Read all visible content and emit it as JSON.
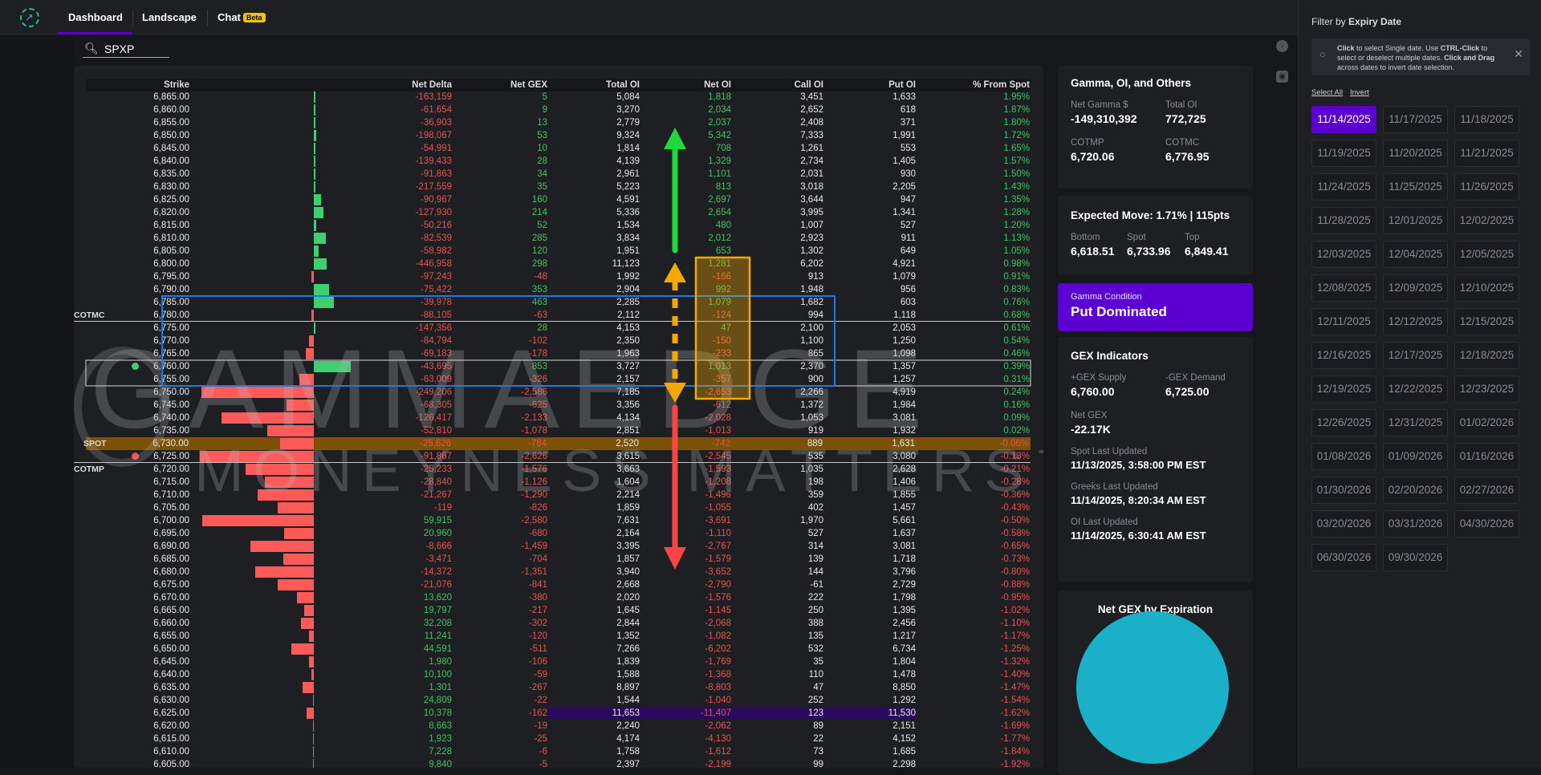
{
  "nav": {
    "tabs": [
      {
        "label": "Dashboard",
        "active": true
      },
      {
        "label": "Landscape"
      },
      {
        "label": "Chat",
        "badge": "Beta"
      }
    ],
    "logo_icon": "trend-up-circle-icon"
  },
  "search": {
    "value": "SPXP",
    "icon": "search-icon"
  },
  "table": {
    "columns": [
      "Strike",
      "Net Delta",
      "Net GEX",
      "Total OI",
      "Net OI",
      "Call OI",
      "Put OI",
      "% From Spot"
    ],
    "markers": {
      "cotmc": "COTMC",
      "spot": "SPOT",
      "cotmp": "COTMP"
    },
    "colors": {
      "positive": "#3fc465",
      "negative": "#ee5050",
      "spot_row": "#7a5200",
      "max_oi_row": "#2a0a5c",
      "range_box": "#1f7ae0",
      "net_oi_box": "#f5a800"
    },
    "rows": [
      [
        "6,865.00",
        "-163,159",
        "5",
        "5,084",
        "1,818",
        "3,451",
        "1,633",
        "1.95%"
      ],
      [
        "6,860.00",
        "-61,654",
        "9",
        "3,270",
        "2,034",
        "2,652",
        "618",
        "1.87%"
      ],
      [
        "6,855.00",
        "-36,903",
        "13",
        "2,779",
        "2,037",
        "2,408",
        "371",
        "1.80%"
      ],
      [
        "6,850.00",
        "-198,067",
        "53",
        "9,324",
        "5,342",
        "7,333",
        "1,991",
        "1.72%"
      ],
      [
        "6,845.00",
        "-54,991",
        "10",
        "1,814",
        "708",
        "1,261",
        "553",
        "1.65%"
      ],
      [
        "6,840.00",
        "-139,433",
        "28",
        "4,139",
        "1,329",
        "2,734",
        "1,405",
        "1.57%"
      ],
      [
        "6,835.00",
        "-91,863",
        "34",
        "2,961",
        "1,101",
        "2,031",
        "930",
        "1.50%"
      ],
      [
        "6,830.00",
        "-217,559",
        "35",
        "5,223",
        "813",
        "3,018",
        "2,205",
        "1.43%"
      ],
      [
        "6,825.00",
        "-90,967",
        "160",
        "4,591",
        "2,697",
        "3,644",
        "947",
        "1.35%"
      ],
      [
        "6,820.00",
        "-127,930",
        "214",
        "5,336",
        "2,654",
        "3,995",
        "1,341",
        "1.28%"
      ],
      [
        "6,815.00",
        "-50,216",
        "52",
        "1,534",
        "480",
        "1,007",
        "527",
        "1.20%"
      ],
      [
        "6,810.00",
        "-82,539",
        "285",
        "3,834",
        "2,012",
        "2,923",
        "911",
        "1.13%"
      ],
      [
        "6,805.00",
        "-58,982",
        "120",
        "1,951",
        "653",
        "1,302",
        "649",
        "1.05%"
      ],
      [
        "6,800.00",
        "-446,958",
        "298",
        "11,123",
        "1,281",
        "6,202",
        "4,921",
        "0.98%"
      ],
      [
        "6,795.00",
        "-97,243",
        "-48",
        "1,992",
        "-166",
        "913",
        "1,079",
        "0.91%"
      ],
      [
        "6,790.00",
        "-75,422",
        "353",
        "2,904",
        "992",
        "1,948",
        "956",
        "0.83%"
      ],
      [
        "6,785.00",
        "-39,978",
        "463",
        "2,285",
        "1,079",
        "1,682",
        "603",
        "0.76%"
      ],
      [
        "6,780.00",
        "-88,105",
        "-63",
        "2,112",
        "-124",
        "994",
        "1,118",
        "0.68%"
      ],
      [
        "6,775.00",
        "-147,356",
        "28",
        "4,153",
        "47",
        "2,100",
        "2,053",
        "0.61%"
      ],
      [
        "6,770.00",
        "-84,794",
        "-102",
        "2,350",
        "-150",
        "1,100",
        "1,250",
        "0.54%"
      ],
      [
        "6,765.00",
        "-69,183",
        "-178",
        "1,963",
        "-233",
        "865",
        "1,098",
        "0.46%"
      ],
      [
        "6,760.00",
        "-43,695",
        "853",
        "3,727",
        "1,013",
        "2,370",
        "1,357",
        "0.39%"
      ],
      [
        "6,755.00",
        "-63,009",
        "-326",
        "2,157",
        "-357",
        "900",
        "1,257",
        "0.31%"
      ],
      [
        "6,750.00",
        "-249,206",
        "-2,586",
        "7,185",
        "-2,653",
        "2,266",
        "4,919",
        "0.24%"
      ],
      [
        "6,745.00",
        "-68,305",
        "-625",
        "3,356",
        "-612",
        "1,372",
        "1,984",
        "0.16%"
      ],
      [
        "6,740.00",
        "-126,417",
        "-2,133",
        "4,134",
        "-2,028",
        "1,053",
        "3,081",
        "0.09%"
      ],
      [
        "6,735.00",
        "-52,810",
        "-1,078",
        "2,851",
        "-1,013",
        "919",
        "1,932",
        "0.02%"
      ],
      [
        "6,730.00",
        "-25,626",
        "-784",
        "2,520",
        "-742",
        "889",
        "1,631",
        "-0.06%"
      ],
      [
        "6,725.00",
        "-91,867",
        "-2,626",
        "3,615",
        "-2,545",
        "535",
        "3,080",
        "-0.13%"
      ],
      [
        "6,720.00",
        "-25,233",
        "-1,576",
        "3,663",
        "-1,593",
        "1,035",
        "2,628",
        "-0.21%"
      ],
      [
        "6,715.00",
        "-28,840",
        "-1,126",
        "1,604",
        "-1,208",
        "198",
        "1,406",
        "-0.28%"
      ],
      [
        "6,710.00",
        "-21,267",
        "-1,290",
        "2,214",
        "-1,496",
        "359",
        "1,855",
        "-0.36%"
      ],
      [
        "6,705.00",
        "-119",
        "-826",
        "1,859",
        "-1,055",
        "402",
        "1,457",
        "-0.43%"
      ],
      [
        "6,700.00",
        "59,915",
        "-2,580",
        "7,631",
        "-3,691",
        "1,970",
        "5,661",
        "-0.50%"
      ],
      [
        "6,695.00",
        "20,960",
        "-680",
        "2,164",
        "-1,110",
        "527",
        "1,637",
        "-0.58%"
      ],
      [
        "6,690.00",
        "-8,666",
        "-1,459",
        "3,395",
        "-2,767",
        "314",
        "3,081",
        "-0.65%"
      ],
      [
        "6,685.00",
        "-3,471",
        "-704",
        "1,857",
        "-1,579",
        "139",
        "1,718",
        "-0.73%"
      ],
      [
        "6,680.00",
        "-14,372",
        "-1,351",
        "3,940",
        "-3,652",
        "144",
        "3,796",
        "-0.80%"
      ],
      [
        "6,675.00",
        "-21,076",
        "-841",
        "2,668",
        "-2,790",
        "-61",
        "2,729",
        "-0.88%"
      ],
      [
        "6,670.00",
        "13,620",
        "-380",
        "2,020",
        "-1,576",
        "222",
        "1,798",
        "-0.95%"
      ],
      [
        "6,665.00",
        "19,797",
        "-217",
        "1,645",
        "-1,145",
        "250",
        "1,395",
        "-1.02%"
      ],
      [
        "6,660.00",
        "32,208",
        "-302",
        "2,844",
        "-2,068",
        "388",
        "2,456",
        "-1.10%"
      ],
      [
        "6,655.00",
        "11,241",
        "-120",
        "1,352",
        "-1,082",
        "135",
        "1,217",
        "-1.17%"
      ],
      [
        "6,650.00",
        "44,591",
        "-511",
        "7,266",
        "-6,202",
        "532",
        "6,734",
        "-1.25%"
      ],
      [
        "6,645.00",
        "1,980",
        "-106",
        "1,839",
        "-1,769",
        "35",
        "1,804",
        "-1.32%"
      ],
      [
        "6,640.00",
        "10,100",
        "-59",
        "1,588",
        "-1,368",
        "110",
        "1,478",
        "-1.40%"
      ],
      [
        "6,635.00",
        "1,301",
        "-267",
        "8,897",
        "-8,803",
        "47",
        "8,850",
        "-1.47%"
      ],
      [
        "6,630.00",
        "24,809",
        "-22",
        "1,544",
        "-1,040",
        "252",
        "1,292",
        "-1.54%"
      ],
      [
        "6,625.00",
        "10,378",
        "-162",
        "11,653",
        "-11,407",
        "123",
        "11,530",
        "-1.62%"
      ],
      [
        "6,620.00",
        "8,663",
        "-19",
        "2,240",
        "-2,062",
        "89",
        "2,151",
        "-1.69%"
      ],
      [
        "6,615.00",
        "1,923",
        "-25",
        "4,174",
        "-4,130",
        "22",
        "4,152",
        "-1.77%"
      ],
      [
        "6,610.00",
        "7,228",
        "-6",
        "1,758",
        "-1,612",
        "73",
        "1,685",
        "-1.84%"
      ],
      [
        "6,605.00",
        "9,840",
        "-5",
        "2,397",
        "-2,199",
        "99",
        "2,298",
        "-1.92%"
      ]
    ]
  },
  "watermark": {
    "line1": "GAMMAEDGE",
    "line2": "MONEYNESS MATTERS™"
  },
  "side_icons": [
    "chevron-right-circle-icon",
    "camera-icon"
  ],
  "gamma_card": {
    "title": "Gamma, OI, and Others",
    "net_gamma_label": "Net Gamma $",
    "net_gamma": "-149,310,392",
    "total_oi_label": "Total OI",
    "total_oi": "772,725",
    "cotmp_label": "COTMP",
    "cotmp": "6,720.06",
    "cotmc_label": "COTMC",
    "cotmc": "6,776.95"
  },
  "expected_move": {
    "title": "Expected Move: 1.71% | 115pts",
    "bottom_label": "Bottom",
    "bottom": "6,618.51",
    "spot_label": "Spot",
    "spot": "6,733.96",
    "top_label": "Top",
    "top": "6,849.41"
  },
  "gamma_condition": {
    "label": "Gamma Condition",
    "value": "Put Dominated",
    "color": "#5b00d0"
  },
  "gex": {
    "title": "GEX Indicators",
    "supply_label": "+GEX Supply",
    "supply": "6,760.00",
    "demand_label": "-GEX Demand",
    "demand": "6,725.00",
    "net_label": "Net GEX",
    "net": "-22.17K",
    "spot_upd_label": "Spot Last Updated",
    "spot_upd": "11/13/2025, 3:58:00 PM EST",
    "greeks_upd_label": "Greeks Last Updated",
    "greeks_upd": "11/14/2025, 8:20:34 AM EST",
    "oi_upd_label": "OI Last Updated",
    "oi_upd": "11/14/2025, 6:30:41 AM EST"
  },
  "net_gex_exp": {
    "title": "Net GEX by Expiration",
    "color": "#1ab0c8"
  },
  "filter": {
    "title_pre": "Filter by ",
    "title_bold": "Expiry Date",
    "tip_b1": "Click",
    "tip_1": " to select Single date. Use ",
    "tip_b2": "CTRL-Click",
    "tip_2": " to select or deselect multiple dates. ",
    "tip_b3": "Click and Drag",
    "tip_3": " across dates to invert date selection.",
    "select_all": "Select All",
    "invert": "Invert",
    "dates": [
      "11/14/2025",
      "11/17/2025",
      "11/18/2025",
      "11/19/2025",
      "11/20/2025",
      "11/21/2025",
      "11/24/2025",
      "11/25/2025",
      "11/26/2025",
      "11/28/2025",
      "12/01/2025",
      "12/02/2025",
      "12/03/2025",
      "12/04/2025",
      "12/05/2025",
      "12/08/2025",
      "12/09/2025",
      "12/10/2025",
      "12/11/2025",
      "12/12/2025",
      "12/15/2025",
      "12/16/2025",
      "12/17/2025",
      "12/18/2025",
      "12/19/2025",
      "12/22/2025",
      "12/23/2025",
      "12/26/2025",
      "12/31/2025",
      "01/02/2026",
      "01/08/2026",
      "01/09/2026",
      "01/16/2026",
      "01/30/2026",
      "02/20/2026",
      "02/27/2026",
      "03/20/2026",
      "03/31/2026",
      "04/30/2026",
      "06/30/2026",
      "09/30/2026"
    ],
    "selected": "11/14/2025"
  }
}
